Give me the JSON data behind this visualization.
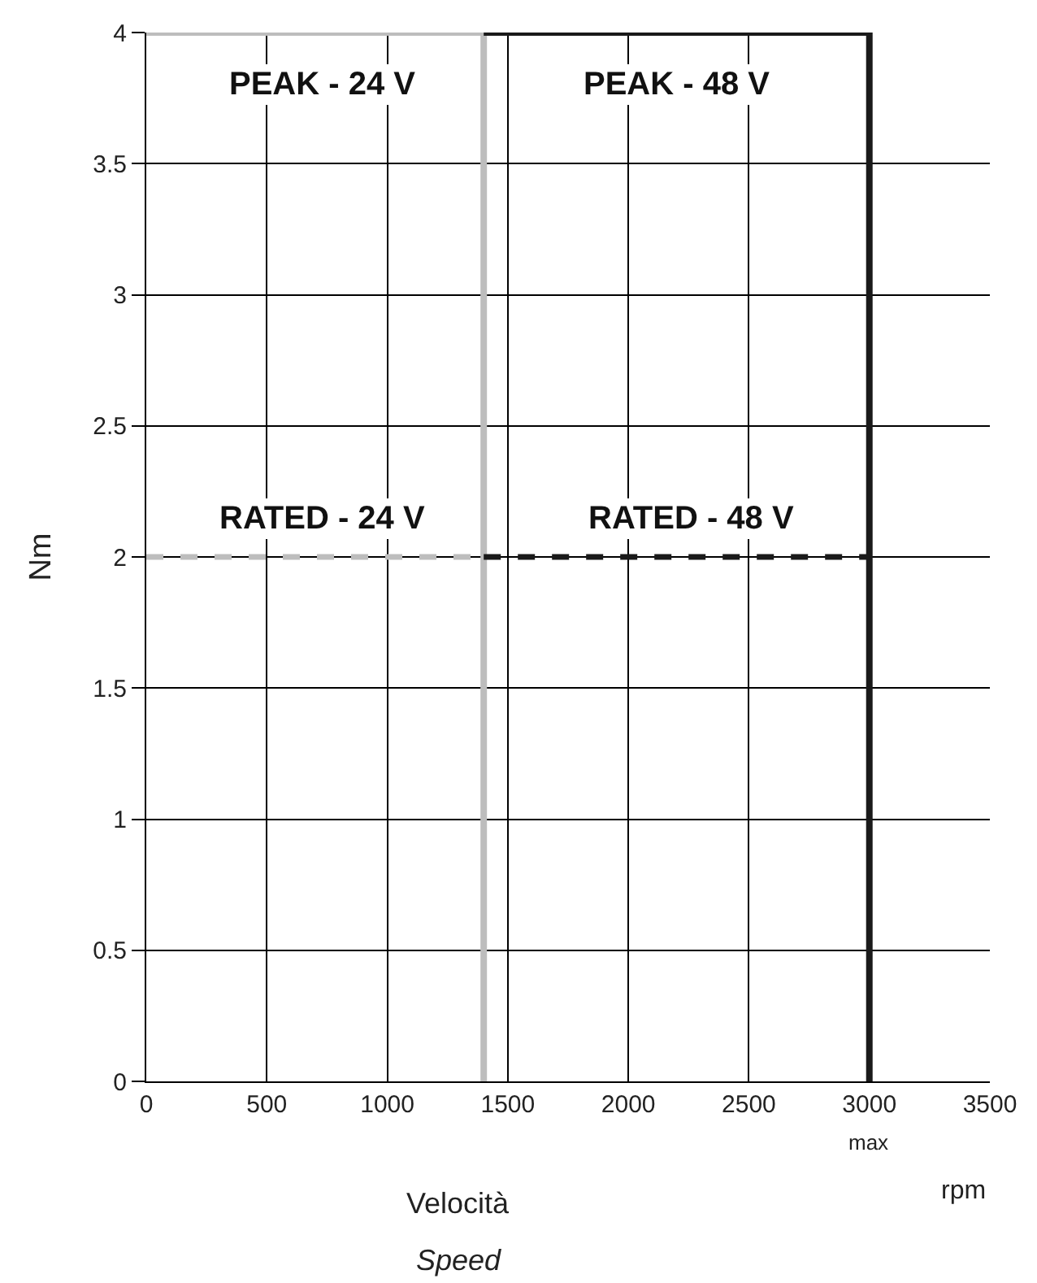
{
  "chart_data": {
    "type": "line",
    "xlabel": "Velocità",
    "ylabel": "Nm",
    "xlim": [
      0,
      3500
    ],
    "ylim": [
      0,
      4
    ],
    "xticks": [
      0,
      500,
      1000,
      1500,
      2000,
      2500,
      3000,
      3500
    ],
    "yticks": [
      0,
      {
        "value": 0.5,
        "label": "0.5"
      },
      1,
      {
        "value": 1.5,
        "label": "1.5"
      },
      2,
      {
        "value": 2.5,
        "label": "2.5"
      },
      3,
      {
        "value": 3.5,
        "label": "3.5"
      },
      4
    ],
    "grid": true,
    "marker": "none",
    "series": [
      {
        "color": "#bdbdbd",
        "x": [
          0,
          1400,
          1400
        ],
        "values": [
          4,
          4,
          0
        ],
        "line_style": "solid"
      },
      {
        "color": "#1a1a1a",
        "x": [
          1400,
          3000,
          3000
        ],
        "values": [
          4,
          4,
          0
        ],
        "line_style": "solid"
      },
      {
        "color": "#bdbdbd",
        "x": [
          0,
          1400
        ],
        "values": [
          2,
          2
        ],
        "line_style": "dashed"
      },
      {
        "color": "#1a1a1a",
        "x": [
          1400,
          3000
        ],
        "values": [
          2,
          2
        ],
        "line_style": "dashed"
      }
    ],
    "annotations": [
      "PEAK - 24 V",
      "PEAK - 48 V",
      "RATED - 24 V",
      "RATED - 48 V",
      "max",
      "rpm",
      "Speed"
    ]
  }
}
